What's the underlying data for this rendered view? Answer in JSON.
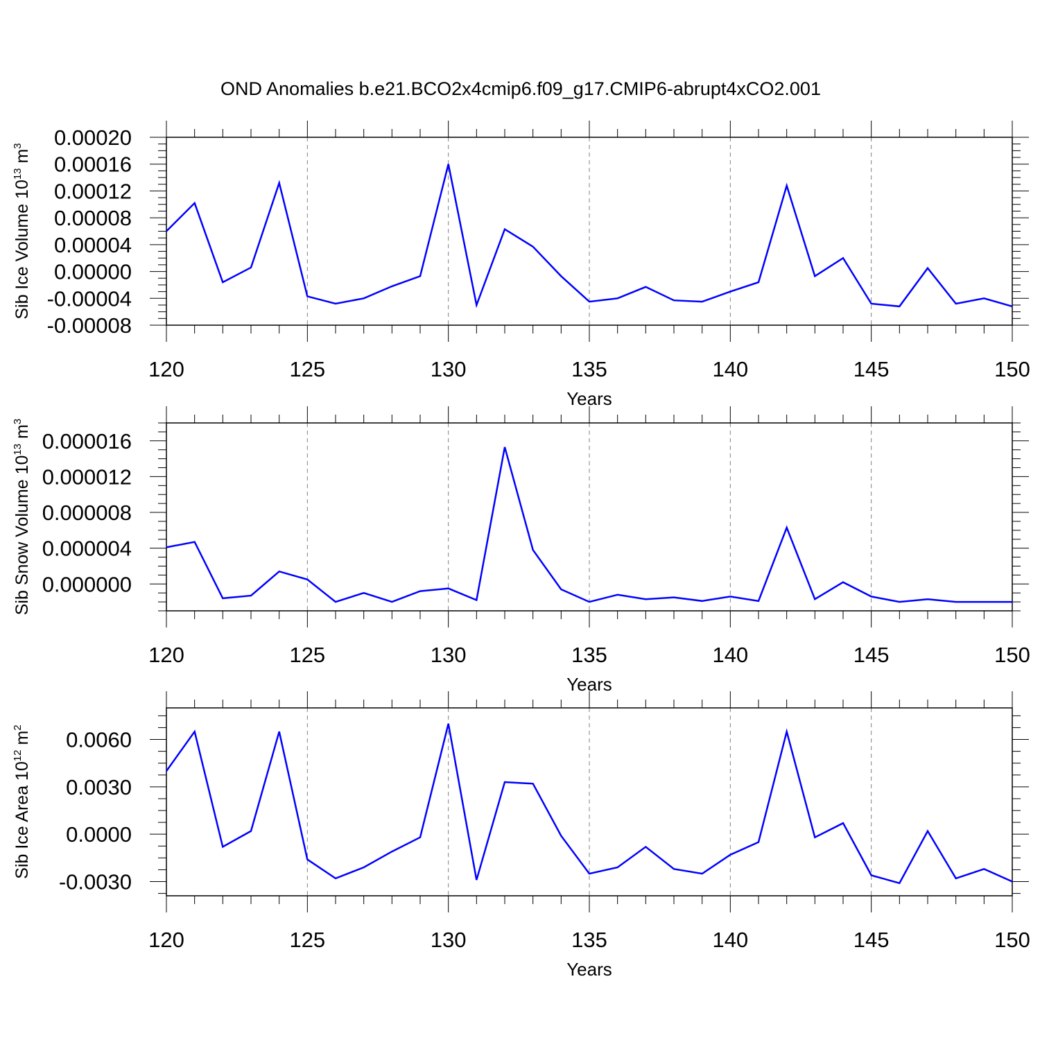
{
  "title": "OND Anomalies b.e21.BCO2x4cmip6.f09_g17.CMIP6-abrupt4xCO2.001",
  "colors": {
    "line": "#0000ff",
    "axis": "#000000",
    "grid": "#808080"
  },
  "chart_data": [
    {
      "type": "line",
      "xlabel": "Years",
      "ylabel": "Sib Ice Volume 10",
      "ylabel_exp": "13",
      "ylabel_unit": " m",
      "ylabel_unit_exp": "3",
      "xlim": [
        120,
        150
      ],
      "ylim": [
        -8e-05,
        0.0002
      ],
      "xticks": [
        120,
        125,
        130,
        135,
        140,
        145,
        150
      ],
      "xtick_labels": [
        "120",
        "125",
        "130",
        "135",
        "140",
        "145",
        "150"
      ],
      "yticks": [
        -8e-05,
        -4e-05,
        0.0,
        4e-05,
        8e-05,
        0.00012,
        0.00016,
        0.0002
      ],
      "ytick_labels": [
        "-0.00008",
        "-0.00004",
        "0.00000",
        "0.00004",
        "0.00008",
        "0.00012",
        "0.00016",
        "0.00020"
      ],
      "grid": "vertical dashed",
      "x": [
        120,
        121,
        122,
        123,
        124,
        125,
        126,
        127,
        128,
        129,
        130,
        131,
        132,
        133,
        134,
        135,
        136,
        137,
        138,
        139,
        140,
        141,
        142,
        143,
        144,
        145,
        146,
        147,
        148,
        149,
        150
      ],
      "values": [
        6e-05,
        0.000102,
        -1.6e-05,
        6e-06,
        0.000132,
        -3.7e-05,
        -4.8e-05,
        -4e-05,
        -2.2e-05,
        -7e-06,
        0.00016,
        -5e-05,
        6.3e-05,
        3.7e-05,
        -7e-06,
        -4.5e-05,
        -4e-05,
        -2.3e-05,
        -4.3e-05,
        -4.5e-05,
        -3e-05,
        -1.6e-05,
        0.000128,
        -7e-06,
        2e-05,
        -4.8e-05,
        -5.2e-05,
        5e-06,
        -4.8e-05,
        -4e-05,
        -5.2e-05
      ]
    },
    {
      "type": "line",
      "xlabel": "Years",
      "ylabel": "Sib Snow Volume 10",
      "ylabel_exp": "13",
      "ylabel_unit": " m",
      "ylabel_unit_exp": "3",
      "xlim": [
        120,
        150
      ],
      "ylim": [
        -3e-06,
        1.8e-05
      ],
      "xticks": [
        120,
        125,
        130,
        135,
        140,
        145,
        150
      ],
      "xtick_labels": [
        "120",
        "125",
        "130",
        "135",
        "140",
        "145",
        "150"
      ],
      "yticks": [
        0.0,
        4e-06,
        8e-06,
        1.2e-05,
        1.6e-05
      ],
      "ytick_labels": [
        "0.000000",
        "0.000004",
        "0.000008",
        "0.000012",
        "0.000016"
      ],
      "grid": "vertical dashed",
      "x": [
        120,
        121,
        122,
        123,
        124,
        125,
        126,
        127,
        128,
        129,
        130,
        131,
        132,
        133,
        134,
        135,
        136,
        137,
        138,
        139,
        140,
        141,
        142,
        143,
        144,
        145,
        146,
        147,
        148,
        149,
        150
      ],
      "values": [
        4.1e-06,
        4.7e-06,
        -1.6e-06,
        -1.3e-06,
        1.4e-06,
        5e-07,
        -2e-06,
        -1e-06,
        -2e-06,
        -8e-07,
        -5e-07,
        -1.8e-06,
        1.53e-05,
        3.8e-06,
        -6e-07,
        -2e-06,
        -1.2e-06,
        -1.7e-06,
        -1.5e-06,
        -1.9e-06,
        -1.4e-06,
        -1.9e-06,
        6.3e-06,
        -1.7e-06,
        2e-07,
        -1.4e-06,
        -2e-06,
        -1.7e-06,
        -2e-06,
        -2e-06,
        -2e-06
      ]
    },
    {
      "type": "line",
      "xlabel": "Years",
      "ylabel": "Sib Ice Area 10",
      "ylabel_exp": "12",
      "ylabel_unit": " m",
      "ylabel_unit_exp": "2",
      "xlim": [
        120,
        150
      ],
      "ylim": [
        -0.0039,
        0.008
      ],
      "xticks": [
        120,
        125,
        130,
        135,
        140,
        145,
        150
      ],
      "xtick_labels": [
        "120",
        "125",
        "130",
        "135",
        "140",
        "145",
        "150"
      ],
      "yticks": [
        -0.003,
        0.0,
        0.003,
        0.006
      ],
      "ytick_labels": [
        "-0.0030",
        "0.0000",
        "0.0030",
        "0.0060"
      ],
      "grid": "vertical dashed",
      "x": [
        120,
        121,
        122,
        123,
        124,
        125,
        126,
        127,
        128,
        129,
        130,
        131,
        132,
        133,
        134,
        135,
        136,
        137,
        138,
        139,
        140,
        141,
        142,
        143,
        144,
        145,
        146,
        147,
        148,
        149,
        150
      ],
      "values": [
        0.004,
        0.0065,
        -0.0008,
        0.0002,
        0.0065,
        -0.0016,
        -0.0028,
        -0.0021,
        -0.0011,
        -0.0002,
        0.007,
        -0.0029,
        0.0033,
        0.0032,
        -0.0001,
        -0.0025,
        -0.0021,
        -0.0008,
        -0.0022,
        -0.0025,
        -0.0013,
        -0.0005,
        0.0065,
        -0.0002,
        0.0007,
        -0.0026,
        -0.0031,
        0.0002,
        -0.0028,
        -0.0022,
        -0.003
      ]
    }
  ]
}
